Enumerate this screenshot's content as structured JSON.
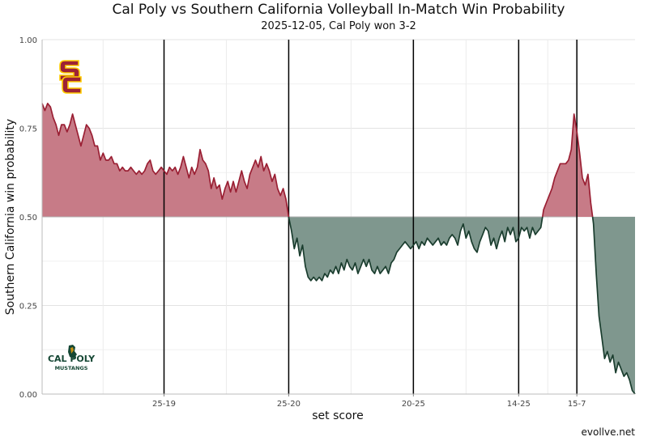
{
  "title": "Cal Poly vs Southern California Volleyball In-Match Win Probability",
  "subtitle": "2025-12-05, Cal Poly won 3-2",
  "ylabel": "Southern California win probability",
  "xlabel": "set score",
  "credit": "evollve.net",
  "colors": {
    "above": "#c77b87",
    "below": "#7f978e",
    "line_above": "#9a1f33",
    "line_below": "#1a3d2e",
    "baseline": "#b0b0b0"
  },
  "logos": {
    "top": "usc-sc-logo",
    "bottom": "cal-poly-mustangs-logo",
    "bottom_text": [
      "CAL POLY",
      "MUSTANGS"
    ]
  },
  "chart_data": {
    "type": "area",
    "title": "Cal Poly vs Southern California Volleyball In-Match Win Probability",
    "subtitle": "2025-12-05, Cal Poly won 3-2",
    "xlabel": "set score",
    "ylabel": "Southern California win probability",
    "ylim": [
      0,
      1
    ],
    "yticks": [
      0,
      0.25,
      0.5,
      0.75,
      1.0
    ],
    "ytick_labels": [
      "0.00",
      "0.25",
      "0.50",
      "0.75",
      "1.00"
    ],
    "xlim": [
      0,
      214
    ],
    "baseline": 0.5,
    "set_ends": [
      {
        "x": 44,
        "label": "25-19"
      },
      {
        "x": 89,
        "label": "25-20"
      },
      {
        "x": 134,
        "label": "20-25"
      },
      {
        "x": 172,
        "label": "14-25"
      },
      {
        "x": 193,
        "label": "15-7"
      }
    ],
    "grid": true,
    "series": [
      {
        "points": [
          [
            0,
            0.82
          ],
          [
            1,
            0.8
          ],
          [
            2,
            0.82
          ],
          [
            3,
            0.81
          ],
          [
            4,
            0.78
          ],
          [
            5,
            0.76
          ],
          [
            6,
            0.73
          ],
          [
            7,
            0.76
          ],
          [
            8,
            0.76
          ],
          [
            9,
            0.74
          ],
          [
            10,
            0.76
          ],
          [
            11,
            0.79
          ],
          [
            12,
            0.76
          ],
          [
            13,
            0.73
          ],
          [
            14,
            0.7
          ],
          [
            15,
            0.73
          ],
          [
            16,
            0.76
          ],
          [
            17,
            0.75
          ],
          [
            18,
            0.73
          ],
          [
            19,
            0.7
          ],
          [
            20,
            0.7
          ],
          [
            21,
            0.66
          ],
          [
            22,
            0.68
          ],
          [
            23,
            0.66
          ],
          [
            24,
            0.66
          ],
          [
            25,
            0.67
          ],
          [
            26,
            0.65
          ],
          [
            27,
            0.65
          ],
          [
            28,
            0.63
          ],
          [
            29,
            0.64
          ],
          [
            30,
            0.63
          ],
          [
            31,
            0.63
          ],
          [
            32,
            0.64
          ],
          [
            33,
            0.63
          ],
          [
            34,
            0.62
          ],
          [
            35,
            0.63
          ],
          [
            36,
            0.62
          ],
          [
            37,
            0.63
          ],
          [
            38,
            0.65
          ],
          [
            39,
            0.66
          ],
          [
            40,
            0.63
          ],
          [
            41,
            0.62
          ],
          [
            42,
            0.63
          ],
          [
            43,
            0.64
          ],
          [
            44,
            0.63
          ],
          [
            45,
            0.62
          ],
          [
            46,
            0.64
          ],
          [
            47,
            0.63
          ],
          [
            48,
            0.64
          ],
          [
            49,
            0.62
          ],
          [
            50,
            0.64
          ],
          [
            51,
            0.67
          ],
          [
            52,
            0.64
          ],
          [
            53,
            0.61
          ],
          [
            54,
            0.64
          ],
          [
            55,
            0.62
          ],
          [
            56,
            0.64
          ],
          [
            57,
            0.69
          ],
          [
            58,
            0.66
          ],
          [
            59,
            0.65
          ],
          [
            60,
            0.63
          ],
          [
            61,
            0.58
          ],
          [
            62,
            0.61
          ],
          [
            63,
            0.58
          ],
          [
            64,
            0.59
          ],
          [
            65,
            0.55
          ],
          [
            66,
            0.58
          ],
          [
            67,
            0.6
          ],
          [
            68,
            0.57
          ],
          [
            69,
            0.6
          ],
          [
            70,
            0.57
          ],
          [
            71,
            0.6
          ],
          [
            72,
            0.63
          ],
          [
            73,
            0.6
          ],
          [
            74,
            0.58
          ],
          [
            75,
            0.62
          ],
          [
            76,
            0.64
          ],
          [
            77,
            0.66
          ],
          [
            78,
            0.64
          ],
          [
            79,
            0.67
          ],
          [
            80,
            0.63
          ],
          [
            81,
            0.65
          ],
          [
            82,
            0.63
          ],
          [
            83,
            0.6
          ],
          [
            84,
            0.62
          ],
          [
            85,
            0.58
          ],
          [
            86,
            0.56
          ],
          [
            87,
            0.58
          ],
          [
            88,
            0.55
          ],
          [
            89,
            0.5
          ],
          [
            90,
            0.46
          ],
          [
            91,
            0.41
          ],
          [
            92,
            0.44
          ],
          [
            93,
            0.39
          ],
          [
            94,
            0.42
          ],
          [
            95,
            0.36
          ],
          [
            96,
            0.33
          ],
          [
            97,
            0.32
          ],
          [
            98,
            0.33
          ],
          [
            99,
            0.32
          ],
          [
            100,
            0.33
          ],
          [
            101,
            0.32
          ],
          [
            102,
            0.34
          ],
          [
            103,
            0.33
          ],
          [
            104,
            0.35
          ],
          [
            105,
            0.34
          ],
          [
            106,
            0.36
          ],
          [
            107,
            0.34
          ],
          [
            108,
            0.37
          ],
          [
            109,
            0.35
          ],
          [
            110,
            0.38
          ],
          [
            111,
            0.36
          ],
          [
            112,
            0.35
          ],
          [
            113,
            0.37
          ],
          [
            114,
            0.34
          ],
          [
            115,
            0.36
          ],
          [
            116,
            0.38
          ],
          [
            117,
            0.36
          ],
          [
            118,
            0.38
          ],
          [
            119,
            0.35
          ],
          [
            120,
            0.34
          ],
          [
            121,
            0.36
          ],
          [
            122,
            0.34
          ],
          [
            123,
            0.35
          ],
          [
            124,
            0.36
          ],
          [
            125,
            0.34
          ],
          [
            126,
            0.37
          ],
          [
            127,
            0.38
          ],
          [
            128,
            0.4
          ],
          [
            129,
            0.41
          ],
          [
            130,
            0.42
          ],
          [
            131,
            0.43
          ],
          [
            132,
            0.42
          ],
          [
            133,
            0.41
          ],
          [
            134,
            0.42
          ],
          [
            135,
            0.43
          ],
          [
            136,
            0.41
          ],
          [
            137,
            0.43
          ],
          [
            138,
            0.42
          ],
          [
            139,
            0.44
          ],
          [
            140,
            0.43
          ],
          [
            141,
            0.42
          ],
          [
            142,
            0.43
          ],
          [
            143,
            0.44
          ],
          [
            144,
            0.42
          ],
          [
            145,
            0.43
          ],
          [
            146,
            0.42
          ],
          [
            147,
            0.44
          ],
          [
            148,
            0.45
          ],
          [
            149,
            0.44
          ],
          [
            150,
            0.42
          ],
          [
            151,
            0.46
          ],
          [
            152,
            0.48
          ],
          [
            153,
            0.44
          ],
          [
            154,
            0.46
          ],
          [
            155,
            0.43
          ],
          [
            156,
            0.41
          ],
          [
            157,
            0.4
          ],
          [
            158,
            0.43
          ],
          [
            159,
            0.45
          ],
          [
            160,
            0.47
          ],
          [
            161,
            0.46
          ],
          [
            162,
            0.42
          ],
          [
            163,
            0.44
          ],
          [
            164,
            0.41
          ],
          [
            165,
            0.44
          ],
          [
            166,
            0.46
          ],
          [
            167,
            0.43
          ],
          [
            168,
            0.47
          ],
          [
            169,
            0.45
          ],
          [
            170,
            0.47
          ],
          [
            171,
            0.43
          ],
          [
            172,
            0.44
          ],
          [
            173,
            0.47
          ],
          [
            174,
            0.46
          ],
          [
            175,
            0.47
          ],
          [
            176,
            0.44
          ],
          [
            177,
            0.47
          ],
          [
            178,
            0.45
          ],
          [
            179,
            0.46
          ],
          [
            180,
            0.47
          ],
          [
            181,
            0.52
          ],
          [
            182,
            0.54
          ],
          [
            183,
            0.56
          ],
          [
            184,
            0.58
          ],
          [
            185,
            0.61
          ],
          [
            186,
            0.63
          ],
          [
            187,
            0.65
          ],
          [
            188,
            0.65
          ],
          [
            189,
            0.65
          ],
          [
            190,
            0.66
          ],
          [
            191,
            0.69
          ],
          [
            192,
            0.79
          ],
          [
            193,
            0.74
          ],
          [
            194,
            0.68
          ],
          [
            195,
            0.61
          ],
          [
            196,
            0.59
          ],
          [
            197,
            0.62
          ],
          [
            198,
            0.54
          ],
          [
            199,
            0.48
          ],
          [
            200,
            0.34
          ],
          [
            201,
            0.22
          ],
          [
            202,
            0.16
          ],
          [
            203,
            0.1
          ],
          [
            204,
            0.12
          ],
          [
            205,
            0.09
          ],
          [
            206,
            0.11
          ],
          [
            207,
            0.06
          ],
          [
            208,
            0.09
          ],
          [
            209,
            0.07
          ],
          [
            210,
            0.05
          ],
          [
            211,
            0.06
          ],
          [
            212,
            0.04
          ],
          [
            213,
            0.01
          ],
          [
            214,
            0.0
          ]
        ]
      }
    ]
  }
}
